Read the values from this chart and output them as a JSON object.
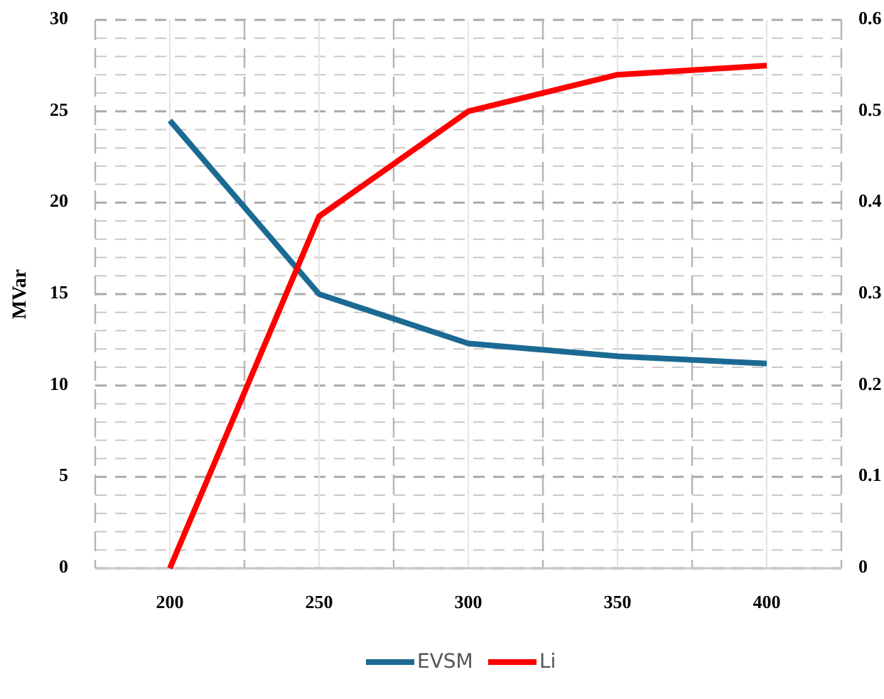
{
  "chart_data": {
    "type": "line",
    "ylabel": "MVar",
    "categories": [
      "200",
      "250",
      "300",
      "350",
      "400"
    ],
    "series": [
      {
        "name": "EVSM",
        "color": "#1b6a93",
        "values": [
          24.5,
          15,
          12.3,
          11.6,
          11.2
        ]
      },
      {
        "name": "Li",
        "color": "#ff0000",
        "values": [
          0,
          0.385,
          0.5,
          0.54,
          0.55
        ],
        "axis": "y2"
      }
    ],
    "ylim": [
      0,
      30
    ],
    "yticks": [
      0,
      5,
      10,
      15,
      20,
      25,
      30
    ],
    "y2lim": [
      0,
      0.6
    ],
    "y2ticks": [
      0,
      0.1,
      0.2,
      0.3,
      0.4,
      0.5,
      0.6
    ],
    "grid": true,
    "legend": "bottom",
    "marker": "none",
    "line_style": "solid"
  }
}
